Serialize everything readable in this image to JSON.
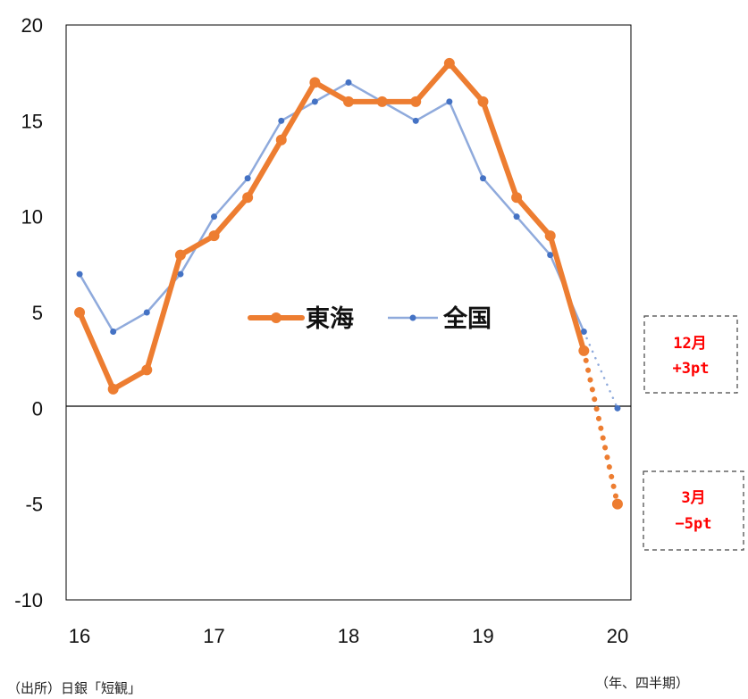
{
  "chart_data": {
    "type": "line",
    "x": [
      16,
      16.25,
      16.5,
      16.75,
      17,
      17.25,
      17.5,
      17.75,
      18,
      18.25,
      18.5,
      18.75,
      19,
      19.25,
      19.5,
      19.75,
      20
    ],
    "x_ticks": [
      "16",
      "17",
      "18",
      "19",
      "20"
    ],
    "y_ticks": [
      "20",
      "15",
      "10",
      "5",
      "0",
      "-5",
      "-10"
    ],
    "ylim": [
      -10,
      20
    ],
    "xlim": [
      15.9,
      20.1
    ],
    "grid": false,
    "legend_position": "center",
    "series": [
      {
        "name": "東海",
        "color": "#ed7d31",
        "values": [
          5,
          1,
          2,
          8,
          9,
          11,
          14,
          17,
          16,
          16,
          16,
          18,
          16,
          11,
          9,
          3,
          -5
        ],
        "dotted_from_index": 15
      },
      {
        "name": "全国",
        "color": "#8faadc",
        "marker_color": "#4472c4",
        "values": [
          7,
          4,
          5,
          7,
          10,
          12,
          15,
          16,
          17,
          16,
          15,
          16,
          12,
          10,
          8,
          4,
          0
        ],
        "dotted_from_index": 15
      }
    ],
    "annotations": [
      {
        "line1": "12月",
        "line2": "+3pt"
      },
      {
        "line1": "3月",
        "line2": "−5pt"
      }
    ],
    "source_note": "（出所）日銀「短観」",
    "xlabel": "（年、四半期）"
  }
}
